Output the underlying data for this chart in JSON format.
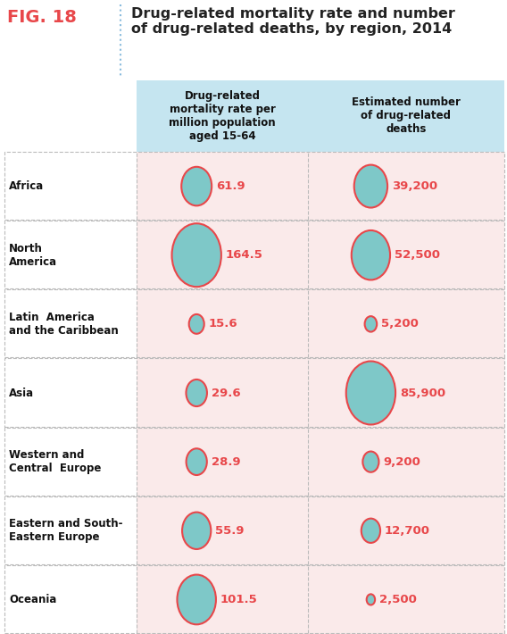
{
  "title_fig": "FIG. 18",
  "title_main": "Drug-related mortality rate and number\nof drug-related deaths, by region, 2014",
  "col1_header": "Drug-related\nmortality rate per\nmillion population\naged 15-64",
  "col2_header": "Estimated number\nof drug-related\ndeaths",
  "regions": [
    "Africa",
    "North\nAmerica",
    "Latin  America\nand the Caribbean",
    "Asia",
    "Western and\nCentral  Europe",
    "Eastern and South-\nEastern Europe",
    "Oceania"
  ],
  "rate_values": [
    61.9,
    164.5,
    15.6,
    29.6,
    28.9,
    55.9,
    101.5
  ],
  "rate_labels": [
    "61.9",
    "164.5",
    "15.6",
    "29.6",
    "28.9",
    "55.9",
    "101.5"
  ],
  "death_values": [
    39200,
    52500,
    5200,
    85900,
    9200,
    12700,
    2500
  ],
  "death_labels": [
    "39,200",
    "52,500",
    "5,200",
    "85,900",
    "9,200",
    "12,700",
    "2,500"
  ],
  "circle_fill": "#7EC8C8",
  "circle_edge": "#E8474A",
  "text_color": "#E8474A",
  "header_bg": "#C5E5F0",
  "row_bg": "#FAEAEA",
  "fig_label_color": "#E8474A",
  "title_color": "#222222",
  "region_color": "#111111",
  "border_color": "#BBBBBB",
  "white": "#FFFFFF"
}
